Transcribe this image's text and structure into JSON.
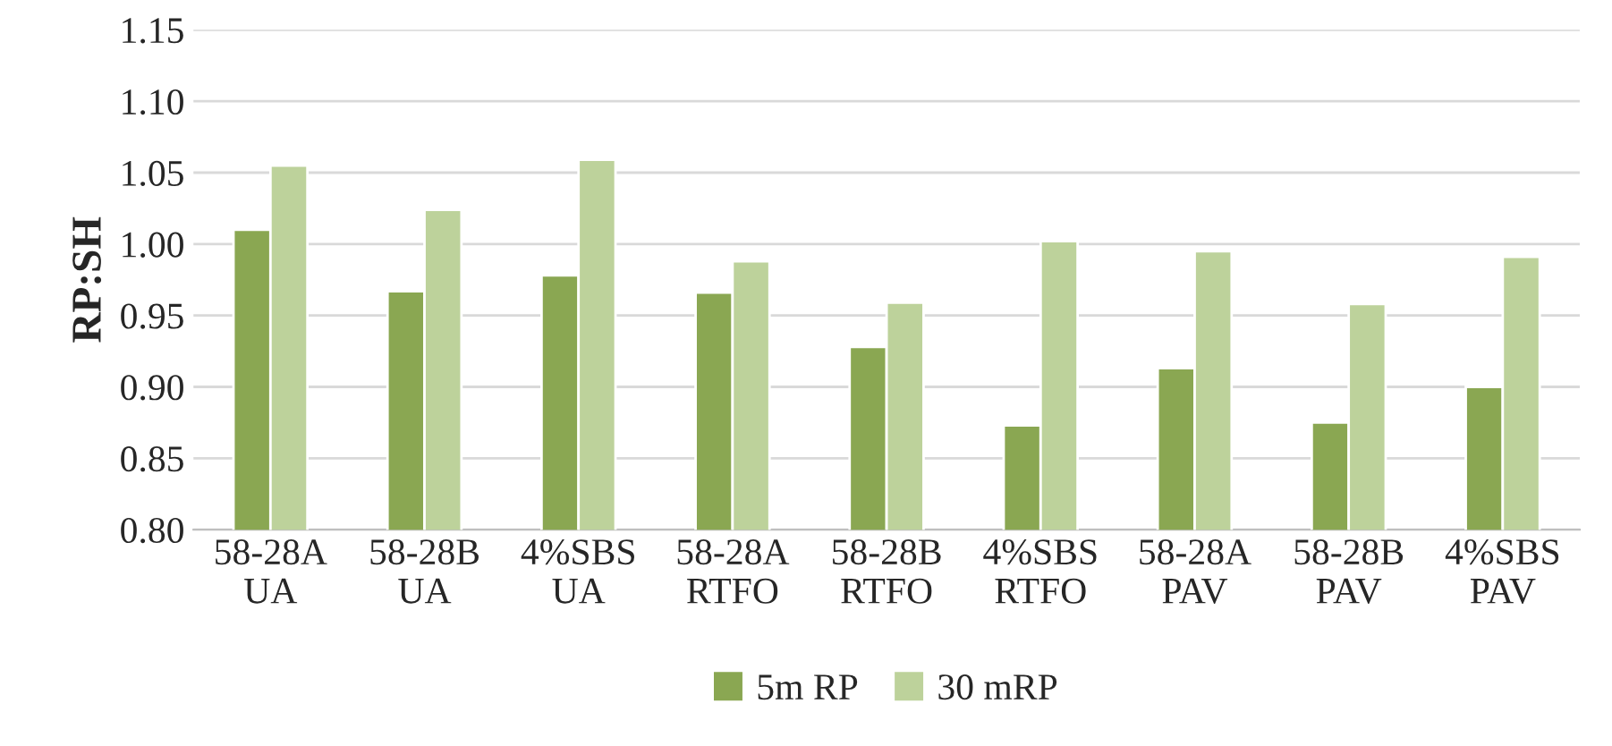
{
  "chart_data": {
    "type": "bar",
    "ylabel": "RP:SH",
    "categories": [
      "58-28A\nUA",
      "58-28B\nUA",
      "4%SBS\nUA",
      "58-28A\nRTFO",
      "58-28B\nRTFO",
      "4%SBS\nRTFO",
      "58-28A\nPAV",
      "58-28B\nPAV",
      "4%SBS\nPAV"
    ],
    "series": [
      {
        "name": "5m RP",
        "color": "#8aa752",
        "values": [
          1.01,
          0.967,
          0.978,
          0.966,
          0.928,
          0.873,
          0.913,
          0.875,
          0.9
        ]
      },
      {
        "name": "30 mRP",
        "color": "#bdd29b",
        "values": [
          1.055,
          1.024,
          1.059,
          0.988,
          0.959,
          1.002,
          0.995,
          0.958,
          0.991
        ]
      }
    ],
    "ylim": [
      0.8,
      1.15
    ],
    "yticks": [
      {
        "value": 0.8,
        "label": "0.80"
      },
      {
        "value": 0.85,
        "label": "0.85"
      },
      {
        "value": 0.9,
        "label": "0.90"
      },
      {
        "value": 0.95,
        "label": "0.95"
      },
      {
        "value": 1.0,
        "label": "1.00"
      },
      {
        "value": 1.05,
        "label": "1.05"
      },
      {
        "value": 1.1,
        "label": "1.10"
      },
      {
        "value": 1.15,
        "label": "1.15"
      }
    ],
    "grid": "y",
    "legend": "bottom"
  }
}
